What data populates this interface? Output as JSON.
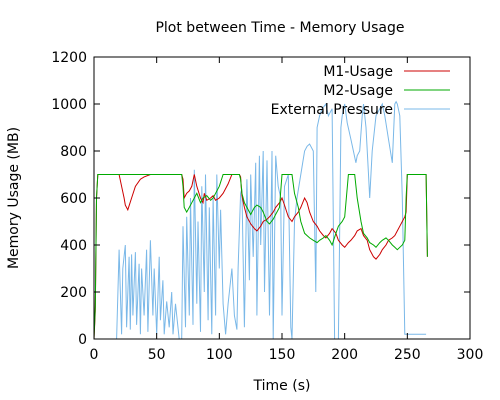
{
  "chart_data": {
    "type": "line",
    "title": "Plot between Time - Memory Usage",
    "xlabel": "Time (s)",
    "ylabel": "Memory Usage (MB)",
    "xlim": [
      0,
      300
    ],
    "ylim": [
      0,
      1200
    ],
    "xticks": [
      0,
      50,
      100,
      150,
      200,
      250,
      300
    ],
    "yticks": [
      0,
      200,
      400,
      600,
      800,
      1000,
      1200
    ],
    "grid": false,
    "legend": "top-right",
    "series": [
      {
        "name": "M1-Usage",
        "color": "#cc0000",
        "x": [
          0,
          1,
          2,
          3,
          10,
          20,
          22,
          24,
          25,
          27,
          30,
          33,
          37,
          40,
          45,
          50,
          55,
          60,
          65,
          70,
          71,
          72,
          74,
          76,
          78,
          80,
          82,
          85,
          87,
          88,
          90,
          93,
          95,
          97,
          100,
          103,
          105,
          107,
          110,
          112,
          115,
          116,
          117,
          118,
          120,
          122,
          125,
          128,
          130,
          133,
          135,
          138,
          140,
          143,
          145,
          148,
          150,
          152,
          155,
          158,
          160,
          163,
          165,
          168,
          170,
          172,
          175,
          178,
          180,
          183,
          185,
          188,
          190,
          193,
          195,
          198,
          200,
          203,
          205,
          208,
          210,
          213,
          215,
          218,
          220,
          223,
          225,
          228,
          230,
          233,
          235,
          238,
          240,
          242,
          244,
          246,
          248,
          249,
          250,
          255,
          260,
          265,
          266
        ],
        "y": [
          0,
          120,
          600,
          700,
          700,
          700,
          650,
          600,
          570,
          550,
          600,
          650,
          680,
          690,
          700,
          700,
          700,
          700,
          700,
          700,
          680,
          600,
          620,
          630,
          650,
          700,
          650,
          600,
          580,
          620,
          590,
          600,
          610,
          590,
          600,
          620,
          640,
          660,
          700,
          700,
          700,
          700,
          690,
          610,
          560,
          520,
          490,
          470,
          460,
          480,
          500,
          510,
          520,
          540,
          560,
          580,
          600,
          570,
          520,
          500,
          520,
          540,
          560,
          600,
          580,
          540,
          500,
          480,
          460,
          440,
          430,
          450,
          470,
          450,
          420,
          400,
          390,
          410,
          420,
          440,
          460,
          470,
          440,
          420,
          380,
          350,
          340,
          360,
          380,
          400,
          420,
          430,
          440,
          460,
          480,
          500,
          520,
          540,
          700,
          700,
          700,
          700,
          350
        ]
      },
      {
        "name": "M2-Usage",
        "color": "#00aa00",
        "x": [
          0,
          1,
          2,
          3,
          10,
          20,
          30,
          40,
          50,
          60,
          65,
          70,
          71,
          72,
          74,
          76,
          78,
          80,
          82,
          85,
          87,
          90,
          93,
          95,
          97,
          100,
          103,
          105,
          107,
          110,
          112,
          115,
          116,
          117,
          118,
          120,
          122,
          125,
          128,
          130,
          133,
          135,
          138,
          140,
          143,
          145,
          148,
          150,
          152,
          155,
          158,
          160,
          163,
          165,
          168,
          170,
          172,
          175,
          178,
          180,
          183,
          185,
          188,
          190,
          193,
          195,
          198,
          200,
          203,
          205,
          208,
          210,
          213,
          215,
          218,
          220,
          223,
          225,
          228,
          230,
          233,
          235,
          238,
          240,
          242,
          244,
          246,
          248,
          249,
          250,
          255,
          260,
          265,
          266
        ],
        "y": [
          0,
          140,
          600,
          700,
          700,
          700,
          700,
          700,
          700,
          700,
          700,
          700,
          650,
          560,
          540,
          560,
          580,
          600,
          620,
          580,
          600,
          610,
          590,
          600,
          620,
          650,
          700,
          700,
          700,
          700,
          700,
          700,
          700,
          680,
          620,
          580,
          560,
          530,
          560,
          570,
          560,
          540,
          500,
          490,
          510,
          530,
          560,
          700,
          700,
          700,
          700,
          620,
          560,
          500,
          450,
          440,
          430,
          420,
          410,
          420,
          430,
          440,
          420,
          400,
          450,
          480,
          500,
          520,
          700,
          700,
          700,
          600,
          500,
          450,
          430,
          410,
          400,
          390,
          410,
          420,
          430,
          420,
          400,
          390,
          380,
          390,
          400,
          420,
          600,
          700,
          700,
          700,
          700,
          350
        ]
      },
      {
        "name": "External Pressure",
        "color": "#7ab8e8",
        "x": [
          0,
          18,
          20,
          22,
          23,
          25,
          26,
          28,
          29,
          30,
          31,
          33,
          34,
          36,
          37,
          38,
          40,
          42,
          43,
          45,
          47,
          48,
          50,
          52,
          53,
          55,
          56,
          58,
          60,
          62,
          63,
          65,
          68,
          70,
          71,
          73,
          74,
          76,
          77,
          79,
          80,
          82,
          83,
          85,
          86,
          88,
          89,
          91,
          92,
          94,
          95,
          97,
          98,
          100,
          101,
          103,
          105,
          107,
          110,
          112,
          114,
          115,
          117,
          118,
          120,
          122,
          124,
          125,
          127,
          129,
          130,
          132,
          133,
          135,
          136,
          138,
          140,
          142,
          143,
          145,
          147,
          149,
          150,
          152,
          155,
          157,
          158,
          160,
          162,
          165,
          168,
          170,
          172,
          175,
          177,
          178,
          180,
          182,
          185,
          187,
          190,
          192,
          194,
          195,
          197,
          198,
          200,
          202,
          205,
          207,
          209,
          210,
          212,
          214,
          215,
          217,
          219,
          220,
          222,
          225,
          228,
          230,
          232,
          235,
          238,
          240,
          241,
          242,
          244,
          246,
          248,
          250,
          255,
          260,
          265
        ],
        "y": [
          0,
          0,
          380,
          20,
          300,
          400,
          50,
          350,
          40,
          360,
          100,
          370,
          60,
          320,
          20,
          300,
          100,
          380,
          30,
          420,
          100,
          300,
          20,
          350,
          80,
          250,
          20,
          160,
          50,
          200,
          20,
          150,
          0,
          0,
          480,
          50,
          520,
          100,
          600,
          60,
          720,
          150,
          500,
          30,
          650,
          200,
          700,
          80,
          560,
          20,
          600,
          100,
          700,
          300,
          550,
          150,
          20,
          150,
          300,
          100,
          40,
          300,
          620,
          640,
          50,
          680,
          250,
          700,
          350,
          750,
          100,
          780,
          400,
          800,
          200,
          760,
          100,
          800,
          0,
          780,
          650,
          600,
          100,
          650,
          700,
          50,
          0,
          500,
          600,
          700,
          800,
          820,
          830,
          800,
          200,
          900,
          950,
          980,
          1000,
          950,
          980,
          0,
          0,
          0,
          900,
          950,
          1000,
          920,
          850,
          800,
          750,
          780,
          800,
          950,
          1000,
          900,
          700,
          600,
          800,
          950,
          980,
          1000,
          950,
          850,
          750,
          1000,
          1010,
          1000,
          950,
          600,
          20,
          20,
          20,
          20,
          20
        ]
      }
    ]
  }
}
